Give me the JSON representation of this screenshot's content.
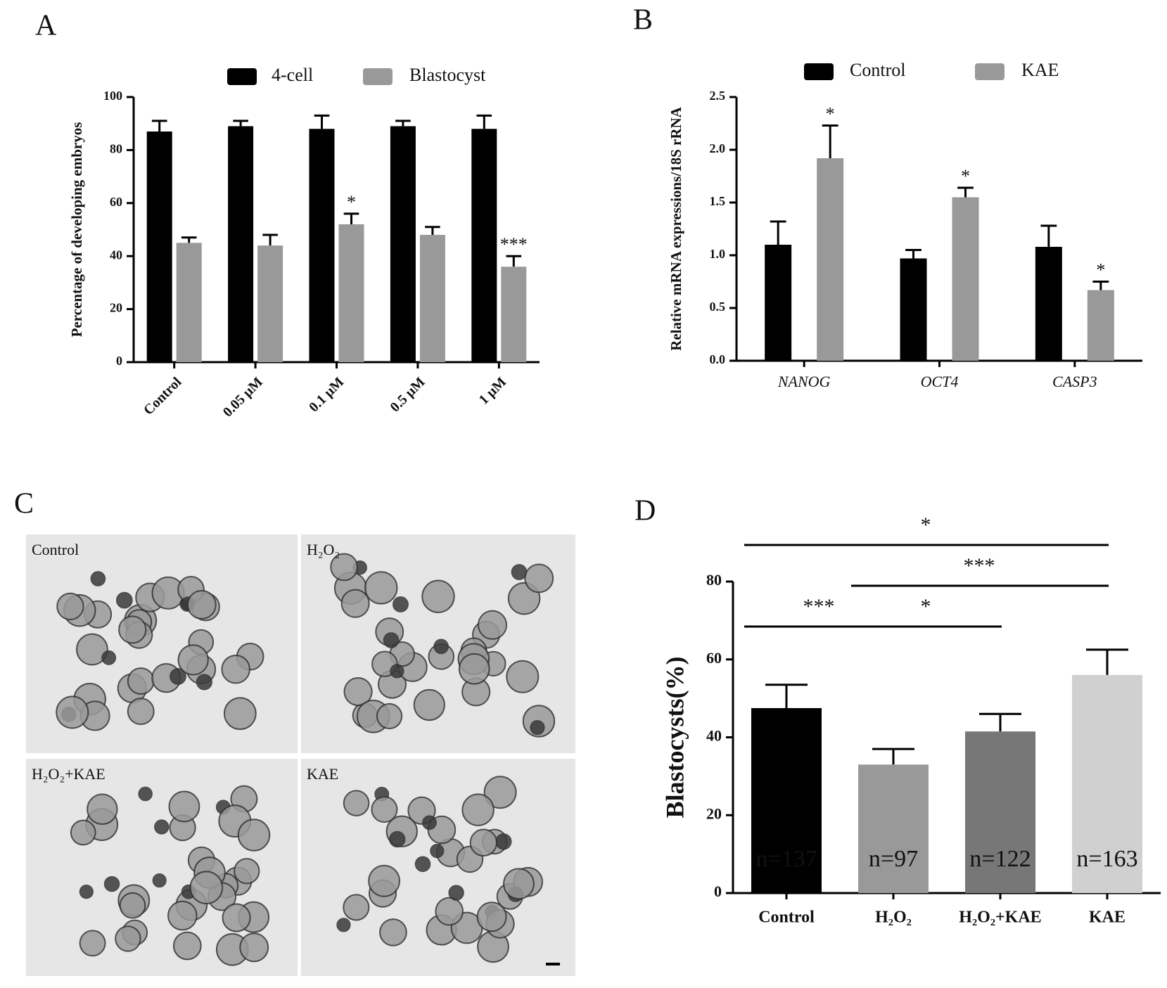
{
  "chart_data": [
    {
      "type": "bar",
      "panel_label": "A",
      "y_label": "Percentage of developing embryos",
      "categories": [
        "Control",
        "0.05 μM",
        "0.1 μM",
        "0.5 μM",
        "1 μM"
      ],
      "series": [
        {
          "name": "4-cell",
          "color": "#000000",
          "values": [
            87,
            89,
            88,
            89,
            88
          ],
          "errors": [
            4,
            2,
            5,
            2,
            5
          ]
        },
        {
          "name": "Blastocyst",
          "color": "#999999",
          "values": [
            45,
            44,
            52,
            48,
            36
          ],
          "errors": [
            2,
            4,
            4,
            3,
            4
          ]
        }
      ],
      "annotations": [
        {
          "series": "Blastocyst",
          "category": "0.1 μM",
          "text": "*"
        },
        {
          "series": "Blastocyst",
          "category": "1 μM",
          "text": "***"
        }
      ],
      "ylim": [
        0,
        100
      ],
      "yticks": [
        0,
        20,
        40,
        60,
        80,
        100
      ]
    },
    {
      "type": "bar",
      "panel_label": "B",
      "y_label": "Relative mRNA expressions/18S rRNA",
      "categories": [
        "NANOG",
        "OCT4",
        "CASP3"
      ],
      "series": [
        {
          "name": "Control",
          "color": "#000000",
          "values": [
            1.1,
            0.97,
            1.08
          ],
          "errors": [
            0.22,
            0.08,
            0.2
          ]
        },
        {
          "name": "KAE",
          "color": "#999999",
          "values": [
            1.92,
            1.55,
            0.67
          ],
          "errors": [
            0.31,
            0.09,
            0.08
          ]
        }
      ],
      "annotations": [
        {
          "series": "KAE",
          "category": "NANOG",
          "text": "*"
        },
        {
          "series": "KAE",
          "category": "OCT4",
          "text": "*"
        },
        {
          "series": "KAE",
          "category": "CASP3",
          "text": "*"
        }
      ],
      "ylim": [
        0,
        2.5
      ],
      "yticks": [
        {
          "value": 0,
          "label": "0.0"
        },
        0.5,
        {
          "value": 1,
          "label": "1.0"
        },
        1.5,
        {
          "value": 2,
          "label": "2.0"
        },
        2.5
      ]
    },
    {
      "type": "bar",
      "panel_label": "D",
      "y_label": "Blastocysts(%)",
      "categories": [
        "Control",
        "H₂O₂",
        "H₂O₂+KAE",
        "KAE"
      ],
      "values": [
        47.5,
        33,
        41.5,
        56
      ],
      "errors": [
        6,
        4,
        4.5,
        6.5
      ],
      "colors": [
        "#000000",
        "#999999",
        "#777777",
        "#d0d0d0"
      ],
      "n_labels": [
        "n=137",
        "n=97",
        "n=122",
        "n=163"
      ],
      "comparisons": [
        {
          "between": [
            "Control",
            "KAE"
          ],
          "label": "*"
        },
        {
          "between": [
            "H₂O₂",
            "KAE"
          ],
          "label": "***"
        },
        {
          "between": [
            "Control",
            "H₂O₂"
          ],
          "label": "***"
        },
        {
          "between": [
            "H₂O₂",
            "H₂O₂+KAE"
          ],
          "label": "*"
        }
      ],
      "ylim": [
        0,
        80
      ],
      "yticks": [
        0,
        20,
        40,
        60,
        80
      ]
    }
  ],
  "micrographs": {
    "panel_label": "C",
    "labels": [
      "Control",
      "H₂O₂",
      "H₂O₂+KAE",
      "KAE"
    ]
  }
}
